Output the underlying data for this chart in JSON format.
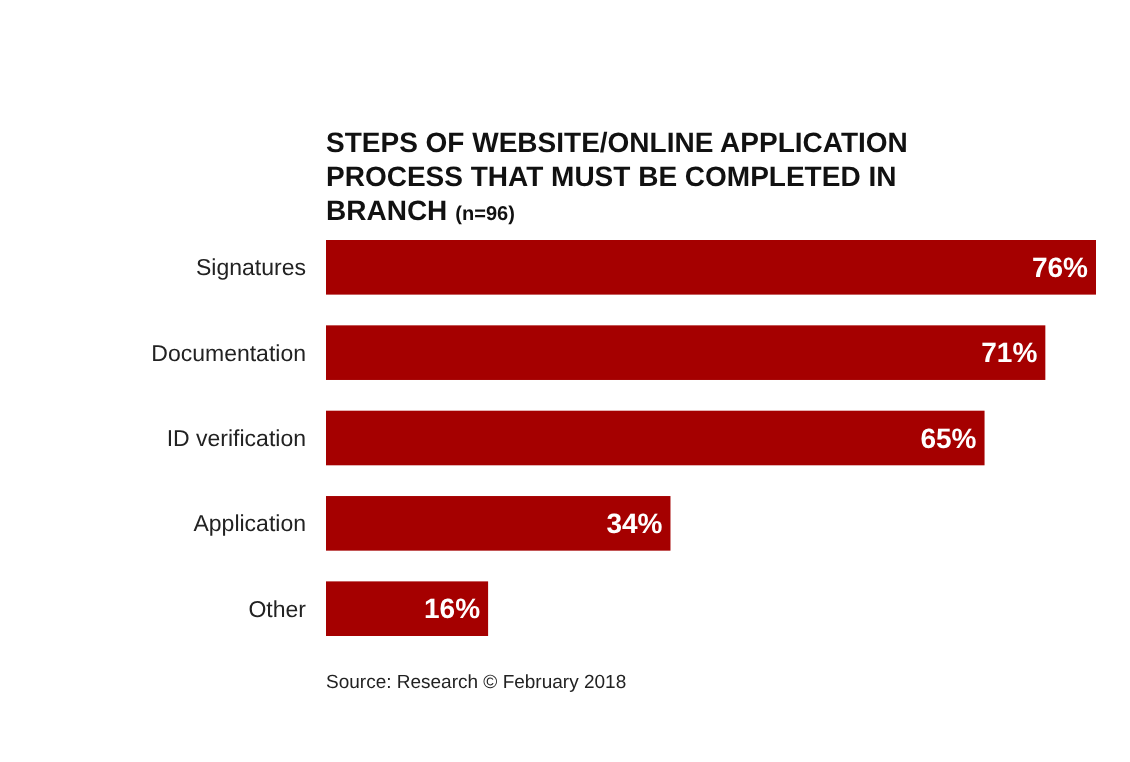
{
  "chart_data": {
    "type": "bar",
    "orientation": "horizontal",
    "title": "STEPS OF WEBSITE/ONLINE APPLICATION PROCESS THAT MUST BE COMPLETED IN BRANCH",
    "subtitle": "(n=96)",
    "categories": [
      "Signatures",
      "Documentation",
      "ID verification",
      "Application",
      "Other"
    ],
    "values": [
      76,
      71,
      65,
      34,
      16
    ],
    "color": "#a50000",
    "value_labels": [
      "76%",
      "71%",
      "65%",
      "34%",
      "16%"
    ],
    "annotations": [
      "Source: Research © February 2018"
    ]
  }
}
